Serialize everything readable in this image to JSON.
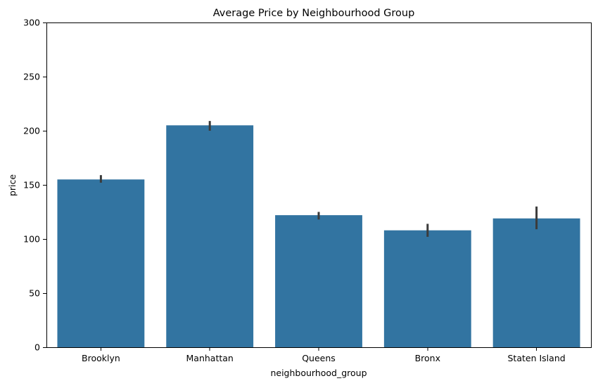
{
  "chart_data": {
    "type": "bar",
    "title": "Average Price by Neighbourhood Group",
    "xlabel": "neighbourhood_group",
    "ylabel": "price",
    "categories": [
      "Brooklyn",
      "Manhattan",
      "Queens",
      "Bronx",
      "Staten Island"
    ],
    "values": [
      155,
      205,
      122,
      108,
      119
    ],
    "error_bars": [
      [
        152,
        159
      ],
      [
        200,
        209
      ],
      [
        118,
        125
      ],
      [
        102,
        114
      ],
      [
        109,
        130
      ]
    ],
    "ylim": [
      0,
      300
    ],
    "yticks": [
      "0",
      "50",
      "100",
      "150",
      "200",
      "250",
      "300"
    ],
    "grid": false,
    "legend": "none",
    "colors": {
      "bar": "#3274a1",
      "error_bar": "#3b3b3b"
    }
  }
}
